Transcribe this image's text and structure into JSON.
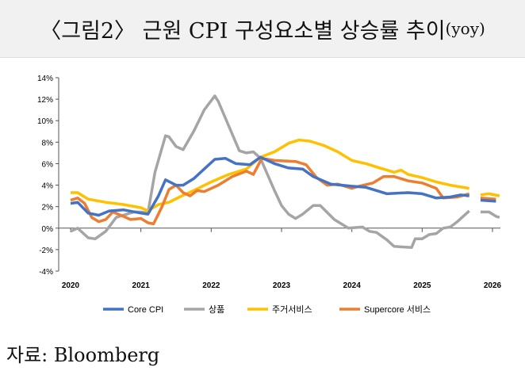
{
  "title": "〈그림2〉 근원 CPI 구성요소별 상승률 추이",
  "title_suffix": "(yoy)",
  "source": "자료: Bloomberg",
  "chart_data": {
    "type": "line",
    "xlim": [
      2020,
      2026
    ],
    "ylim": [
      -4,
      14
    ],
    "yticks": [
      -4,
      -2,
      0,
      2,
      4,
      6,
      8,
      10,
      12,
      14
    ],
    "ytick_labels": [
      "-4%",
      "-2%",
      "0%",
      "2%",
      "4%",
      "6%",
      "8%",
      "10%",
      "12%",
      "14%"
    ],
    "xticks": [
      2020,
      2021,
      2022,
      2023,
      2024,
      2025,
      2026
    ],
    "xtick_labels": [
      "2020",
      "2021",
      "2022",
      "2023",
      "2024",
      "2025",
      "2026"
    ],
    "legend_position": "bottom",
    "series": [
      {
        "name": "Core CPI",
        "color": "#4472C4",
        "points": [
          [
            2020,
            2.3
          ],
          [
            2020.1,
            2.4
          ],
          [
            2020.25,
            1.4
          ],
          [
            2020.4,
            1.2
          ],
          [
            2020.55,
            1.6
          ],
          [
            2020.75,
            1.7
          ],
          [
            2021,
            1.4
          ],
          [
            2021.1,
            1.3
          ],
          [
            2021.25,
            3.0
          ],
          [
            2021.35,
            4.5
          ],
          [
            2021.5,
            4.0
          ],
          [
            2021.6,
            4.0
          ],
          [
            2021.75,
            4.6
          ],
          [
            2021.9,
            5.5
          ],
          [
            2022.05,
            6.4
          ],
          [
            2022.2,
            6.5
          ],
          [
            2022.35,
            6.0
          ],
          [
            2022.55,
            5.9
          ],
          [
            2022.7,
            6.6
          ],
          [
            2022.9,
            6.0
          ],
          [
            2023.1,
            5.6
          ],
          [
            2023.3,
            5.5
          ],
          [
            2023.45,
            4.8
          ],
          [
            2023.7,
            4.1
          ],
          [
            2024,
            3.9
          ],
          [
            2024.2,
            3.8
          ],
          [
            2024.5,
            3.2
          ],
          [
            2024.8,
            3.3
          ],
          [
            2025,
            3.2
          ],
          [
            2025.2,
            2.8
          ],
          [
            2025.4,
            2.9
          ],
          [
            2025.55,
            3.1
          ],
          [
            2025.67,
            3.0
          ],
          null,
          [
            2025.83,
            2.6
          ],
          [
            2026.05,
            2.5
          ]
        ]
      },
      {
        "name": "상품",
        "color": "#A5A5A5",
        "points": [
          [
            2020,
            -0.3
          ],
          [
            2020.1,
            0
          ],
          [
            2020.25,
            -0.9
          ],
          [
            2020.35,
            -1.0
          ],
          [
            2020.5,
            -0.3
          ],
          [
            2020.65,
            1.0
          ],
          [
            2020.9,
            1.5
          ],
          [
            2021,
            1.5
          ],
          [
            2021.1,
            1.4
          ],
          [
            2021.2,
            5.2
          ],
          [
            2021.35,
            8.6
          ],
          [
            2021.4,
            8.5
          ],
          [
            2021.5,
            7.6
          ],
          [
            2021.6,
            7.3
          ],
          [
            2021.75,
            9.0
          ],
          [
            2021.9,
            11.0
          ],
          [
            2022.05,
            12.3
          ],
          [
            2022.1,
            11.8
          ],
          [
            2022.25,
            9.5
          ],
          [
            2022.4,
            7.2
          ],
          [
            2022.5,
            7.0
          ],
          [
            2022.6,
            7.1
          ],
          [
            2022.7,
            6.5
          ],
          [
            2022.9,
            3.5
          ],
          [
            2023,
            2.1
          ],
          [
            2023.1,
            1.3
          ],
          [
            2023.2,
            0.9
          ],
          [
            2023.3,
            1.3
          ],
          [
            2023.45,
            2.1
          ],
          [
            2023.55,
            2.1
          ],
          [
            2023.75,
            0.8
          ],
          [
            2023.95,
            0.0
          ],
          [
            2024.15,
            0.1
          ],
          [
            2024.25,
            -0.3
          ],
          [
            2024.35,
            -0.4
          ],
          [
            2024.5,
            -1.1
          ],
          [
            2024.6,
            -1.7
          ],
          [
            2024.85,
            -1.8
          ],
          [
            2024.9,
            -1.0
          ],
          [
            2025,
            -1.0
          ],
          [
            2025.1,
            -0.6
          ],
          [
            2025.2,
            -0.5
          ],
          [
            2025.3,
            0
          ],
          [
            2025.4,
            0.1
          ],
          [
            2025.5,
            0.6
          ],
          [
            2025.67,
            1.6
          ],
          null,
          [
            2025.83,
            1.5
          ],
          [
            2025.95,
            1.5
          ],
          [
            2026.05,
            1.1
          ],
          [
            2026.1,
            1.0
          ]
        ]
      },
      {
        "name": "주거서비스",
        "color": "#FFC000",
        "points": [
          [
            2020,
            3.3
          ],
          [
            2020.1,
            3.3
          ],
          [
            2020.25,
            2.7
          ],
          [
            2020.5,
            2.4
          ],
          [
            2020.75,
            2.2
          ],
          [
            2021,
            1.9
          ],
          [
            2021.1,
            1.6
          ],
          [
            2021.25,
            2.2
          ],
          [
            2021.4,
            2.4
          ],
          [
            2021.55,
            2.9
          ],
          [
            2021.75,
            3.5
          ],
          [
            2022,
            4.3
          ],
          [
            2022.25,
            5.0
          ],
          [
            2022.5,
            5.5
          ],
          [
            2022.7,
            6.6
          ],
          [
            2022.9,
            7.1
          ],
          [
            2023.1,
            7.9
          ],
          [
            2023.25,
            8.2
          ],
          [
            2023.4,
            8.1
          ],
          [
            2023.6,
            7.7
          ],
          [
            2023.8,
            7.1
          ],
          [
            2024,
            6.3
          ],
          [
            2024.2,
            6.0
          ],
          [
            2024.4,
            5.6
          ],
          [
            2024.6,
            5.2
          ],
          [
            2024.7,
            5.4
          ],
          [
            2024.8,
            5.0
          ],
          [
            2025,
            4.7
          ],
          [
            2025.2,
            4.3
          ],
          [
            2025.4,
            4.0
          ],
          [
            2025.67,
            3.7
          ],
          null,
          [
            2025.83,
            3.1
          ],
          [
            2025.95,
            3.2
          ],
          [
            2026.1,
            3.0
          ]
        ]
      },
      {
        "name": "Supercore 서비스",
        "color": "#ED7D31",
        "points": [
          [
            2020,
            2.6
          ],
          [
            2020.1,
            2.8
          ],
          [
            2020.2,
            2.3
          ],
          [
            2020.3,
            1.0
          ],
          [
            2020.4,
            0.6
          ],
          [
            2020.5,
            0.8
          ],
          [
            2020.6,
            1.5
          ],
          [
            2020.75,
            1.1
          ],
          [
            2020.85,
            0.8
          ],
          [
            2021,
            0.9
          ],
          [
            2021.1,
            0.5
          ],
          [
            2021.18,
            0.4
          ],
          [
            2021.3,
            2.0
          ],
          [
            2021.4,
            3.6
          ],
          [
            2021.5,
            4.0
          ],
          [
            2021.6,
            3.3
          ],
          [
            2021.7,
            3.0
          ],
          [
            2021.8,
            3.5
          ],
          [
            2021.9,
            3.4
          ],
          [
            2022.1,
            4.0
          ],
          [
            2022.3,
            4.8
          ],
          [
            2022.5,
            5.3
          ],
          [
            2022.6,
            5.0
          ],
          [
            2022.72,
            6.5
          ],
          [
            2022.9,
            6.3
          ],
          [
            2023.2,
            6.2
          ],
          [
            2023.35,
            5.9
          ],
          [
            2023.5,
            4.7
          ],
          [
            2023.65,
            4.0
          ],
          [
            2023.8,
            4.1
          ],
          [
            2024,
            3.7
          ],
          [
            2024.1,
            3.9
          ],
          [
            2024.3,
            4.2
          ],
          [
            2024.45,
            4.8
          ],
          [
            2024.6,
            4.8
          ],
          [
            2024.8,
            4.4
          ],
          [
            2025,
            4.2
          ],
          [
            2025.2,
            3.7
          ],
          [
            2025.3,
            2.8
          ],
          [
            2025.5,
            2.9
          ],
          [
            2025.67,
            3.2
          ],
          null,
          [
            2025.83,
            2.8
          ],
          [
            2026.05,
            2.7
          ]
        ]
      }
    ]
  }
}
